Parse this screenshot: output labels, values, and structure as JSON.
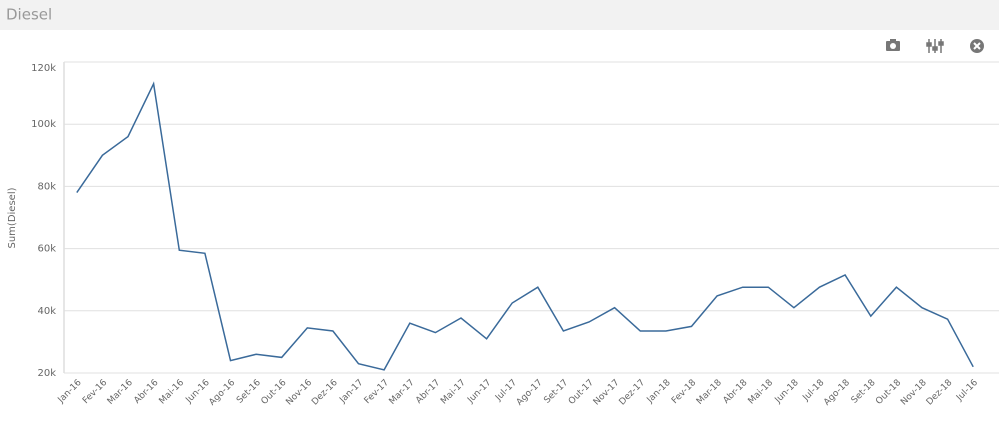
{
  "header": {
    "title": "Diesel"
  },
  "chart_data": {
    "type": "line",
    "y_label": "Sum(Diesel)",
    "categories": [
      "Jan-16",
      "Fev-16",
      "Mar-16",
      "Abr-16",
      "Mai-16",
      "Jun-16",
      "Ago-16",
      "Set-16",
      "Out-16",
      "Nov-16",
      "Dez-16",
      "Jan-17",
      "Fev-17",
      "Mar-17",
      "Abr-17",
      "Mai-17",
      "Jun-17",
      "Jul-17",
      "Ago-17",
      "Set-17",
      "Out-17",
      "Nov-17",
      "Dez-17",
      "Jan-18",
      "Fev-18",
      "Mar-18",
      "Abr-18",
      "Mai-18",
      "Jun-18",
      "Jul-18",
      "Ago-18",
      "Set-18",
      "Out-18",
      "Nov-18",
      "Dez-18",
      "Jul-16"
    ],
    "series": [
      {
        "name": "Sum(Diesel)",
        "color": "#3a6a9a",
        "values": [
          78000,
          90000,
          96000,
          113000,
          59500,
          58500,
          24000,
          26000,
          25000,
          34500,
          33500,
          23000,
          21000,
          36000,
          33000,
          37700,
          31000,
          42500,
          47600,
          33500,
          36400,
          41000,
          33500,
          33500,
          35000,
          44800,
          47600,
          47600,
          41000,
          47600,
          51500,
          38300,
          47600,
          41000,
          37300,
          22000
        ]
      }
    ],
    "ylim": [
      20000,
      120000
    ],
    "yticks": [
      {
        "value": 20000,
        "label": "20k"
      },
      {
        "value": 40000,
        "label": "40k"
      },
      {
        "value": 60000,
        "label": "60k"
      },
      {
        "value": 80000,
        "label": "80k"
      },
      {
        "value": 100000,
        "label": "100k"
      },
      {
        "value": 120000,
        "label": "120k"
      }
    ],
    "grid": true
  }
}
